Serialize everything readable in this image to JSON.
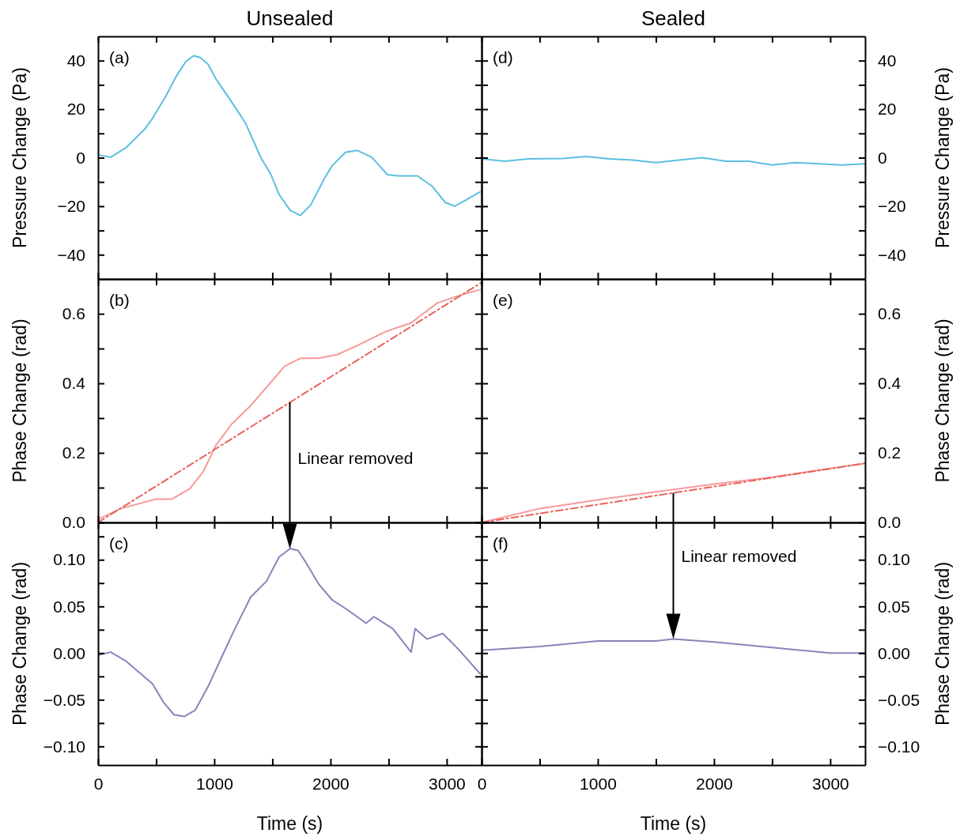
{
  "chart_data": [
    {
      "type": "line",
      "title": "Unsealed",
      "ylabel": "Pressure Change (Pa)",
      "xlim": [
        0,
        3300
      ],
      "xticks": [
        0,
        {
          "value": 500,
          "label": null
        },
        1000,
        {
          "value": 1500,
          "label": null
        },
        2000,
        {
          "value": 2500,
          "label": null
        },
        3000
      ],
      "ylim": [
        -50,
        50
      ],
      "yticks": [
        {
          "value": -40,
          "label": "−40"
        },
        {
          "value": -30,
          "label": null
        },
        {
          "value": -20,
          "label": "−20"
        },
        {
          "value": -10,
          "label": null
        },
        0,
        {
          "value": 10,
          "label": null
        },
        20,
        {
          "value": 30,
          "label": null
        },
        40
      ],
      "tick_labels": "y",
      "annotations": [
        "(a)"
      ],
      "series": [
        {
          "color": "#5bbfe0",
          "x": [
            7,
            109,
            245,
            401,
            469,
            585,
            673,
            755,
            823,
            878,
            946,
            1014,
            1143,
            1265,
            1401,
            1483,
            1558,
            1653,
            1741,
            1830,
            1946,
            2014,
            2129,
            2231,
            2354,
            2490,
            2578,
            2748,
            2878,
            2986,
            3068,
            3150,
            3286
          ],
          "values": [
            1.1,
            0.2,
            4.3,
            11.7,
            16.3,
            25.5,
            33.6,
            39.6,
            42,
            41.3,
            38.5,
            32.5,
            23.4,
            14.6,
            0,
            -6.5,
            -15.2,
            -21.7,
            -23.8,
            -19.5,
            -8.7,
            -3.3,
            2.2,
            3,
            0.2,
            -7,
            -7.5,
            -7.5,
            -11.9,
            -18.4,
            -20,
            -17.9,
            -14.1
          ]
        }
      ]
    },
    {
      "type": "line",
      "ylabel": "Phase Change (rad)",
      "xlim": [
        0,
        3300
      ],
      "xticks": [
        0,
        {
          "value": 500,
          "label": null
        },
        1000,
        {
          "value": 1500,
          "label": null
        },
        2000,
        {
          "value": 2500,
          "label": null
        },
        3000
      ],
      "ylim": [
        0,
        0.7
      ],
      "yticks": [
        {
          "value": 0,
          "label": "0.0"
        },
        {
          "value": 0.1,
          "label": null
        },
        0.2,
        {
          "value": 0.3,
          "label": null
        },
        0.4,
        {
          "value": 0.5,
          "label": null
        },
        0.6
      ],
      "tick_labels": "y",
      "annotations": [
        "(b)",
        "Linear removed"
      ],
      "series": [
        {
          "color": "#f59a9a",
          "x": [
            7,
            197,
            497,
            633,
            789,
            905,
            1014,
            1150,
            1313,
            1469,
            1605,
            1741,
            1898,
            2061,
            2238,
            2469,
            2694,
            2918,
            3150,
            3286
          ],
          "values": [
            0.01,
            0.04,
            0.067,
            0.067,
            0.097,
            0.146,
            0.222,
            0.283,
            0.336,
            0.396,
            0.449,
            0.472,
            0.472,
            0.483,
            0.51,
            0.548,
            0.574,
            0.631,
            0.657,
            0.669
          ]
        },
        {
          "color": "#e8625a",
          "line_style": "dashed",
          "x": [
            0,
            3300
          ],
          "values": [
            0,
            0.69
          ]
        }
      ]
    },
    {
      "type": "line",
      "ylabel": "Phase Change (rad)",
      "xlabel": "Time (s)",
      "xlim": [
        0,
        3300
      ],
      "xticks": [
        0,
        {
          "value": 500,
          "label": null
        },
        1000,
        {
          "value": 1500,
          "label": null
        },
        2000,
        {
          "value": 2500,
          "label": null
        },
        3000
      ],
      "ylim": [
        -0.12,
        0.14
      ],
      "yticks": [
        {
          "value": -0.1,
          "label": "−0.10"
        },
        {
          "value": -0.075,
          "label": null
        },
        {
          "value": -0.05,
          "label": "−0.05"
        },
        {
          "value": -0.025,
          "label": null
        },
        {
          "value": 0,
          "label": "0.00"
        },
        {
          "value": 0.025,
          "label": null
        },
        {
          "value": 0.05,
          "label": "0.05"
        },
        {
          "value": 0.075,
          "label": null
        },
        {
          "value": 0.1,
          "label": "0.10"
        },
        {
          "value": 0.125,
          "label": null
        }
      ],
      "annotations": [
        "(c)"
      ],
      "series": [
        {
          "color": "#8585bb",
          "x": [
            7,
            109,
            245,
            469,
            565,
            653,
            741,
            837,
            946,
            1061,
            1177,
            1313,
            1449,
            1558,
            1653,
            1721,
            1789,
            1898,
            2014,
            2150,
            2306,
            2374,
            2537,
            2694,
            2728,
            2830,
            2966,
            3102,
            3286
          ],
          "values": [
            -0.002,
            0.001,
            -0.009,
            -0.033,
            -0.053,
            -0.066,
            -0.068,
            -0.061,
            -0.036,
            -0.005,
            0.026,
            0.06,
            0.077,
            0.103,
            0.112,
            0.11,
            0.097,
            0.074,
            0.057,
            0.046,
            0.032,
            0.039,
            0.026,
            0.001,
            0.026,
            0.015,
            0.021,
            0.004,
            -0.022
          ]
        }
      ]
    },
    {
      "type": "line",
      "title": "Sealed",
      "ylabel": "Pressure Change (Pa)",
      "xlim": [
        0,
        3300
      ],
      "xticks": [
        0,
        {
          "value": 500,
          "label": null
        },
        1000,
        {
          "value": 1500,
          "label": null
        },
        2000,
        {
          "value": 2500,
          "label": null
        },
        3000
      ],
      "ylim": [
        -50,
        50
      ],
      "yticks": [
        {
          "value": -40,
          "label": "−40"
        },
        {
          "value": -30,
          "label": null
        },
        {
          "value": -20,
          "label": "−20"
        },
        {
          "value": -10,
          "label": null
        },
        0,
        {
          "value": 10,
          "label": null
        },
        20,
        {
          "value": 30,
          "label": null
        },
        40
      ],
      "tick_labels": "y",
      "annotations": [
        "(d)"
      ],
      "series": [
        {
          "color": "#5bbfe0",
          "x": [
            0,
            200,
            400,
            700,
            900,
            1100,
            1300,
            1500,
            1700,
            1900,
            2100,
            2300,
            2500,
            2700,
            2900,
            3100,
            3300
          ],
          "values": [
            -0.5,
            -1.5,
            -0.5,
            -0.3,
            0.5,
            -0.5,
            -1,
            -2,
            -1,
            0,
            -1.5,
            -1.5,
            -3,
            -2,
            -2.5,
            -3,
            -2.5
          ]
        }
      ]
    },
    {
      "type": "line",
      "ylabel": "Phase Change (rad)",
      "xlim": [
        0,
        3300
      ],
      "xticks": [
        0,
        {
          "value": 500,
          "label": null
        },
        1000,
        {
          "value": 1500,
          "label": null
        },
        2000,
        {
          "value": 2500,
          "label": null
        },
        3000
      ],
      "ylim": [
        0,
        0.7
      ],
      "yticks": [
        {
          "value": 0,
          "label": "0.0"
        },
        {
          "value": 0.1,
          "label": null
        },
        0.2,
        {
          "value": 0.3,
          "label": null
        },
        0.4,
        {
          "value": 0.5,
          "label": null
        },
        0.6
      ],
      "tick_labels": "y",
      "annotations": [
        "(e)"
      ],
      "series": [
        {
          "color": "#f59a9a",
          "x": [
            0,
            500,
            1000,
            1500,
            2000,
            2500,
            3000,
            3300
          ],
          "values": [
            0,
            0.04,
            0.065,
            0.088,
            0.11,
            0.13,
            0.155,
            0.17
          ]
        },
        {
          "color": "#e8625a",
          "line_style": "dashed",
          "x": [
            0,
            3300
          ],
          "values": [
            0,
            0.17
          ]
        }
      ]
    },
    {
      "type": "line",
      "ylabel": "Phase Change (rad)",
      "xlabel": "Time (s)",
      "xlim": [
        0,
        3300
      ],
      "xticks": [
        0,
        {
          "value": 500,
          "label": null
        },
        1000,
        {
          "value": 1500,
          "label": null
        },
        2000,
        {
          "value": 2500,
          "label": null
        },
        3000
      ],
      "ylim": [
        -0.12,
        0.14
      ],
      "yticks": [
        {
          "value": -0.1,
          "label": "−0.10"
        },
        {
          "value": -0.075,
          "label": null
        },
        {
          "value": -0.05,
          "label": "−0.05"
        },
        {
          "value": -0.025,
          "label": null
        },
        {
          "value": 0,
          "label": "0.00"
        },
        {
          "value": 0.025,
          "label": null
        },
        {
          "value": 0.05,
          "label": "0.05"
        },
        {
          "value": 0.075,
          "label": null
        },
        {
          "value": 0.1,
          "label": "0.10"
        },
        {
          "value": 0.125,
          "label": null
        }
      ],
      "annotations": [
        "(f)",
        "Linear removed"
      ],
      "series": [
        {
          "color": "#8585bb",
          "x": [
            0,
            500,
            1000,
            1500,
            1650,
            2000,
            2500,
            3000,
            3300
          ],
          "values": [
            0.003,
            0.007,
            0.013,
            0.013,
            0.015,
            0.012,
            0.006,
            0,
            0
          ]
        }
      ]
    }
  ]
}
